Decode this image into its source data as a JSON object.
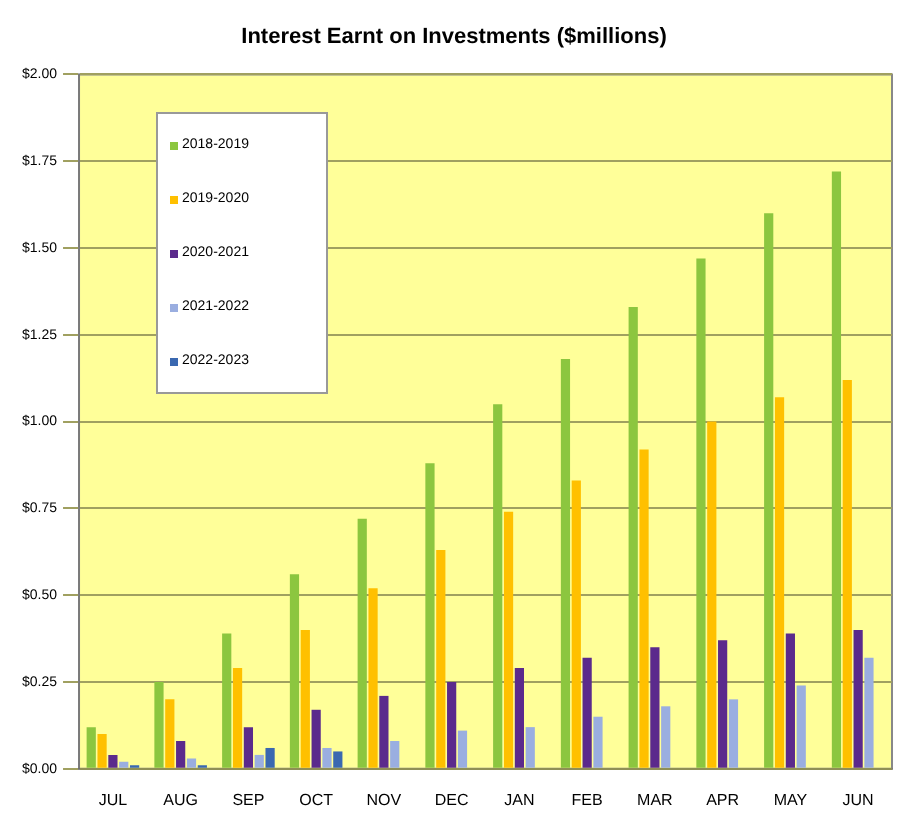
{
  "chart_data": {
    "type": "bar",
    "title": "Interest Earnt on Investments ($millions)",
    "categories": [
      "JUL",
      "AUG",
      "SEP",
      "OCT",
      "NOV",
      "DEC",
      "JAN",
      "FEB",
      "MAR",
      "APR",
      "MAY",
      "JUN"
    ],
    "series": [
      {
        "name": "2018-2019",
        "color": "#8cc63f",
        "values": [
          0.12,
          0.25,
          0.39,
          0.56,
          0.72,
          0.88,
          1.05,
          1.18,
          1.33,
          1.47,
          1.6,
          1.72
        ]
      },
      {
        "name": "2019-2020",
        "color": "#ffc000",
        "values": [
          0.1,
          0.2,
          0.29,
          0.4,
          0.52,
          0.63,
          0.74,
          0.83,
          0.92,
          1.0,
          1.07,
          1.12
        ]
      },
      {
        "name": "2020-2021",
        "color": "#5b2a8c",
        "values": [
          0.04,
          0.08,
          0.12,
          0.17,
          0.21,
          0.25,
          0.29,
          0.32,
          0.35,
          0.37,
          0.39,
          0.4
        ]
      },
      {
        "name": "2021-2022",
        "color": "#9aaee0",
        "values": [
          0.02,
          0.03,
          0.04,
          0.06,
          0.08,
          0.11,
          0.12,
          0.15,
          0.18,
          0.2,
          0.24,
          0.32
        ]
      },
      {
        "name": "2022-2023",
        "color": "#3a68b0",
        "values": [
          0.01,
          0.01,
          0.06,
          0.05,
          null,
          null,
          null,
          null,
          null,
          null,
          null,
          null
        ]
      }
    ],
    "ylim": [
      0,
      2
    ],
    "yticks": [
      {
        "value": 0,
        "label": "$0.00"
      },
      {
        "value": 0.25,
        "label": "$0.25"
      },
      {
        "value": 0.5,
        "label": "$0.50"
      },
      {
        "value": 0.75,
        "label": "$0.75"
      },
      {
        "value": 1,
        "label": "$1.00"
      },
      {
        "value": 1.25,
        "label": "$1.25"
      },
      {
        "value": 1.5,
        "label": "$1.50"
      },
      {
        "value": 1.75,
        "label": "$1.75"
      },
      {
        "value": 2,
        "label": "$2.00"
      }
    ],
    "grid": "y",
    "legend": "top left"
  }
}
